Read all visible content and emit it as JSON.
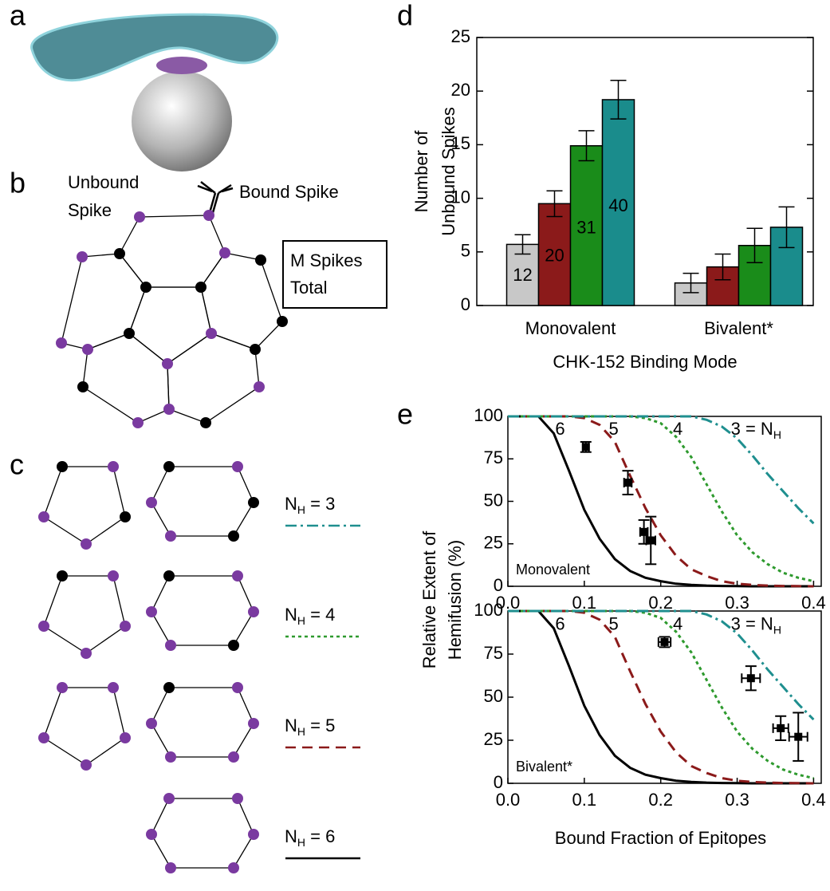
{
  "panel_labels": [
    "a",
    "b",
    "c",
    "d",
    "e"
  ],
  "diagram_b": {
    "unbound": [
      "Unbound",
      "Spike"
    ],
    "bound": "Bound Spike",
    "box": [
      "M Spikes",
      "Total"
    ]
  },
  "diagram_c": {
    "keys": [
      {
        "symbol": "N",
        "subscript": "H",
        "text": " = 3",
        "color": "#1f8f8f",
        "style": "dashdot"
      },
      {
        "symbol": "N",
        "subscript": "H",
        "text": " = 4",
        "color": "#2e9a2e",
        "style": "dotted"
      },
      {
        "symbol": "N",
        "subscript": "H",
        "text": " = 5",
        "color": "#8b1a1a",
        "style": "dashed"
      },
      {
        "symbol": "N",
        "subscript": "H",
        "text": " = 6",
        "color": "#000000",
        "style": "solid"
      }
    ]
  },
  "chart_data": [
    {
      "type": "bar",
      "ylabel": [
        "Number of",
        "Unbound Spikes"
      ],
      "xlabel": "CHK-152 Binding Mode",
      "categories": [
        "Monovalent",
        "Bivalent*"
      ],
      "series": [
        {
          "name": "12",
          "color": "#c8c8c8",
          "values": [
            5.7,
            2.1
          ],
          "errors": [
            0.9,
            0.9
          ]
        },
        {
          "name": "20",
          "color": "#8b1a1a",
          "values": [
            9.5,
            3.6
          ],
          "errors": [
            1.2,
            1.2
          ]
        },
        {
          "name": "31",
          "color": "#1a8c1a",
          "values": [
            14.9,
            5.6
          ],
          "errors": [
            1.4,
            1.6
          ]
        },
        {
          "name": "40",
          "color": "#1a8c8c",
          "values": [
            19.2,
            7.3
          ],
          "errors": [
            1.8,
            1.9
          ]
        }
      ],
      "ylim": [
        0,
        25
      ],
      "yticks": [
        0,
        5,
        10,
        15,
        20,
        25
      ]
    },
    {
      "type": "line",
      "ylabel": [
        "Relative Extent of",
        "Hemifusion (%)"
      ],
      "annotation": "Monovalent",
      "x": [
        0,
        0.02,
        0.04,
        0.06,
        0.08,
        0.1,
        0.12,
        0.14,
        0.16,
        0.18,
        0.2,
        0.22,
        0.24,
        0.26,
        0.28,
        0.3,
        0.32,
        0.34,
        0.36,
        0.38,
        0.4
      ],
      "series": [
        {
          "name": "6",
          "color": "#000000",
          "style": "solid",
          "values": [
            100,
            100,
            100,
            90,
            68,
            45,
            28,
            16,
            9,
            5,
            3,
            1.5,
            0.8,
            0.4,
            0.2,
            0.1,
            0,
            0,
            0,
            0,
            0
          ]
        },
        {
          "name": "5",
          "color": "#8b1a1a",
          "style": "dashed",
          "values": [
            100,
            100,
            100,
            100,
            100,
            99,
            95,
            85,
            65,
            46,
            30,
            18,
            10,
            6,
            3,
            1.5,
            0.8,
            0.4,
            0.2,
            0.1,
            0
          ]
        },
        {
          "name": "4",
          "color": "#2e9a2e",
          "style": "dotted",
          "values": [
            100,
            100,
            100,
            100,
            100,
            100,
            100,
            100,
            100,
            99,
            96,
            88,
            76,
            60,
            44,
            30,
            20,
            13,
            8,
            5,
            3
          ]
        },
        {
          "name": "3 = N",
          "subscript": "H",
          "color": "#1f8f8f",
          "style": "dashdot",
          "values": [
            100,
            100,
            100,
            100,
            100,
            100,
            100,
            100,
            100,
            100,
            100,
            100,
            100,
            98,
            94,
            87,
            77,
            66,
            56,
            46,
            37
          ]
        }
      ],
      "points": {
        "x": [
          0.102,
          0.157,
          0.178,
          0.187
        ],
        "y": [
          82,
          61,
          32,
          27
        ],
        "xerr": [
          0.004,
          0.005,
          0.005,
          0.006
        ],
        "yerr": [
          3,
          7,
          7,
          14
        ]
      },
      "xlim": [
        0,
        0.41
      ],
      "xticks": [
        {
          "value": 0,
          "label": "0.0"
        },
        0.1,
        0.2,
        0.3,
        0.4
      ],
      "ylim": [
        0,
        100
      ],
      "yticks": [
        0,
        25,
        50,
        75,
        100
      ]
    },
    {
      "type": "line",
      "xlabel": "Bound Fraction of Epitopes",
      "annotation": "Bivalent*",
      "x": [
        0,
        0.02,
        0.04,
        0.06,
        0.08,
        0.1,
        0.12,
        0.14,
        0.16,
        0.18,
        0.2,
        0.22,
        0.24,
        0.26,
        0.28,
        0.3,
        0.32,
        0.34,
        0.36,
        0.38,
        0.4
      ],
      "series": [
        {
          "name": "6",
          "color": "#000000",
          "style": "solid",
          "values": [
            100,
            100,
            100,
            90,
            68,
            45,
            28,
            16,
            9,
            5,
            3,
            1.5,
            0.8,
            0.4,
            0.2,
            0.1,
            0,
            0,
            0,
            0,
            0
          ]
        },
        {
          "name": "5",
          "color": "#8b1a1a",
          "style": "dashed",
          "values": [
            100,
            100,
            100,
            100,
            100,
            99,
            95,
            85,
            65,
            46,
            30,
            18,
            10,
            6,
            3,
            1.5,
            0.8,
            0.4,
            0.2,
            0.1,
            0
          ]
        },
        {
          "name": "4",
          "color": "#2e9a2e",
          "style": "dotted",
          "values": [
            100,
            100,
            100,
            100,
            100,
            100,
            100,
            100,
            100,
            99,
            96,
            88,
            76,
            60,
            44,
            30,
            20,
            13,
            8,
            5,
            3
          ]
        },
        {
          "name": "3 = N",
          "subscript": "H",
          "color": "#1f8f8f",
          "style": "dashdot",
          "values": [
            100,
            100,
            100,
            100,
            100,
            100,
            100,
            100,
            100,
            100,
            100,
            100,
            100,
            98,
            94,
            87,
            77,
            66,
            56,
            46,
            37
          ]
        }
      ],
      "points": {
        "x": [
          0.205,
          0.318,
          0.357,
          0.38
        ],
        "y": [
          82,
          61,
          32,
          27
        ],
        "xerr": [
          0.008,
          0.012,
          0.01,
          0.012
        ],
        "yerr": [
          3,
          7,
          7,
          14
        ]
      },
      "xlim": [
        0,
        0.41
      ],
      "xticks": [
        {
          "value": 0,
          "label": "0.0"
        },
        0.1,
        0.2,
        0.3,
        0.4
      ],
      "ylim": [
        0,
        100
      ],
      "yticks": [
        0,
        25,
        50,
        75,
        100
      ]
    }
  ]
}
